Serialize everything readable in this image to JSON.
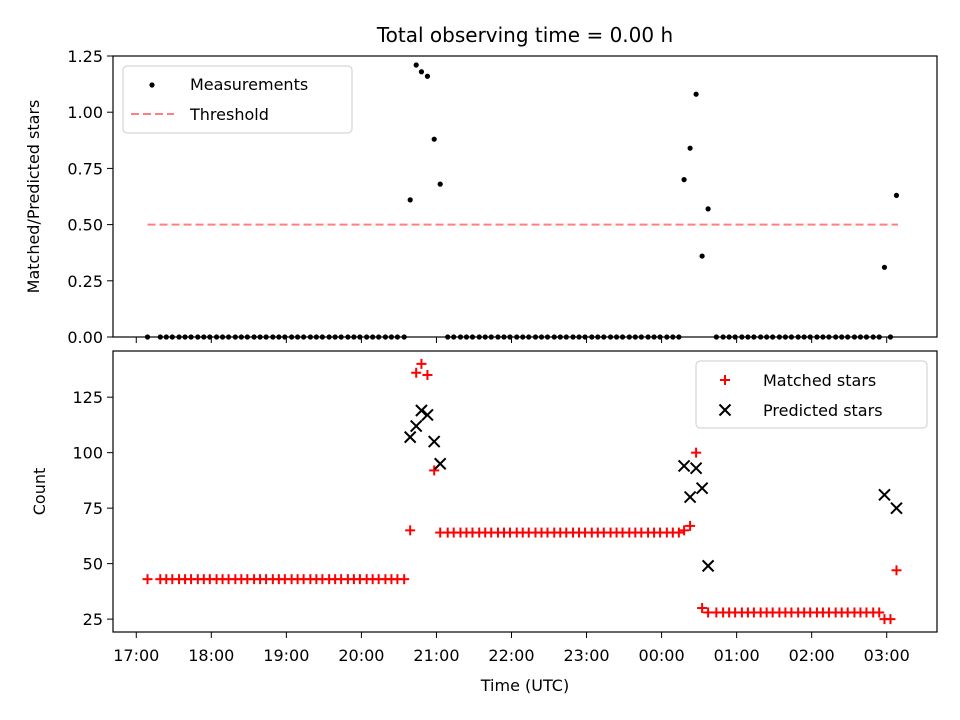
{
  "chart_data": [
    {
      "type": "scatter",
      "title": "Total observing time = 0.00 h",
      "xlabel": "",
      "ylabel": "Matched/Predicted stars",
      "xlim": [
        16.69,
        27.67
      ],
      "ylim": [
        0,
        1.25
      ],
      "yticks": [
        0.0,
        0.25,
        0.5,
        0.75,
        1.0,
        1.25
      ],
      "ytick_labels": [
        "0.00",
        "0.25",
        "0.50",
        "0.75",
        "1.00",
        "1.25"
      ],
      "legend_position": "top-left",
      "series": [
        {
          "name": "Measurements",
          "marker": "dot",
          "color": "#000000",
          "points": [
            [
              17.15,
              0
            ],
            [
              17.32,
              0
            ],
            [
              17.4,
              0
            ],
            [
              17.48,
              0
            ],
            [
              17.57,
              0
            ],
            [
              17.65,
              0
            ],
            [
              17.73,
              0
            ],
            [
              17.82,
              0
            ],
            [
              17.9,
              0
            ],
            [
              17.98,
              0
            ],
            [
              18.07,
              0
            ],
            [
              18.15,
              0
            ],
            [
              18.23,
              0
            ],
            [
              18.32,
              0
            ],
            [
              18.4,
              0
            ],
            [
              18.48,
              0
            ],
            [
              18.57,
              0
            ],
            [
              18.65,
              0
            ],
            [
              18.73,
              0
            ],
            [
              18.82,
              0
            ],
            [
              18.9,
              0
            ],
            [
              18.98,
              0
            ],
            [
              19.07,
              0
            ],
            [
              19.15,
              0
            ],
            [
              19.23,
              0
            ],
            [
              19.32,
              0
            ],
            [
              19.4,
              0
            ],
            [
              19.48,
              0
            ],
            [
              19.57,
              0
            ],
            [
              19.65,
              0
            ],
            [
              19.73,
              0
            ],
            [
              19.82,
              0
            ],
            [
              19.9,
              0
            ],
            [
              19.98,
              0
            ],
            [
              20.07,
              0
            ],
            [
              20.15,
              0
            ],
            [
              20.23,
              0
            ],
            [
              20.32,
              0
            ],
            [
              20.4,
              0
            ],
            [
              20.48,
              0
            ],
            [
              20.57,
              0
            ],
            [
              20.65,
              0.61
            ],
            [
              20.73,
              1.21
            ],
            [
              20.8,
              1.18
            ],
            [
              20.88,
              1.16
            ],
            [
              20.97,
              0.88
            ],
            [
              21.05,
              0.68
            ],
            [
              21.15,
              0
            ],
            [
              21.23,
              0
            ],
            [
              21.32,
              0
            ],
            [
              21.4,
              0
            ],
            [
              21.48,
              0
            ],
            [
              21.57,
              0
            ],
            [
              21.65,
              0
            ],
            [
              21.73,
              0
            ],
            [
              21.82,
              0
            ],
            [
              21.9,
              0
            ],
            [
              21.98,
              0
            ],
            [
              22.07,
              0
            ],
            [
              22.15,
              0
            ],
            [
              22.23,
              0
            ],
            [
              22.32,
              0
            ],
            [
              22.4,
              0
            ],
            [
              22.48,
              0
            ],
            [
              22.57,
              0
            ],
            [
              22.65,
              0
            ],
            [
              22.73,
              0
            ],
            [
              22.82,
              0
            ],
            [
              22.9,
              0
            ],
            [
              22.98,
              0
            ],
            [
              23.07,
              0
            ],
            [
              23.15,
              0
            ],
            [
              23.23,
              0
            ],
            [
              23.32,
              0
            ],
            [
              23.4,
              0
            ],
            [
              23.48,
              0
            ],
            [
              23.57,
              0
            ],
            [
              23.65,
              0
            ],
            [
              23.73,
              0
            ],
            [
              23.82,
              0
            ],
            [
              23.9,
              0
            ],
            [
              23.98,
              0
            ],
            [
              24.07,
              0
            ],
            [
              24.15,
              0
            ],
            [
              24.23,
              0
            ],
            [
              24.3,
              0.7
            ],
            [
              24.38,
              0.84
            ],
            [
              24.46,
              1.08
            ],
            [
              24.54,
              0.36
            ],
            [
              24.62,
              0.57
            ],
            [
              24.73,
              0
            ],
            [
              24.82,
              0
            ],
            [
              24.9,
              0
            ],
            [
              24.98,
              0
            ],
            [
              25.07,
              0
            ],
            [
              25.15,
              0
            ],
            [
              25.23,
              0
            ],
            [
              25.32,
              0
            ],
            [
              25.4,
              0
            ],
            [
              25.48,
              0
            ],
            [
              25.57,
              0
            ],
            [
              25.65,
              0
            ],
            [
              25.73,
              0
            ],
            [
              25.82,
              0
            ],
            [
              25.9,
              0
            ],
            [
              25.98,
              0
            ],
            [
              26.07,
              0
            ],
            [
              26.15,
              0
            ],
            [
              26.23,
              0
            ],
            [
              26.32,
              0
            ],
            [
              26.4,
              0
            ],
            [
              26.48,
              0
            ],
            [
              26.57,
              0
            ],
            [
              26.65,
              0
            ],
            [
              26.73,
              0
            ],
            [
              26.82,
              0
            ],
            [
              26.9,
              0
            ],
            [
              26.97,
              0.31
            ],
            [
              27.05,
              0
            ],
            [
              27.13,
              0.63
            ]
          ]
        },
        {
          "name": "Threshold",
          "style": "dashed",
          "color": "#ff7f7f",
          "points": [
            [
              17.15,
              0.5
            ],
            [
              27.15,
              0.5
            ]
          ]
        }
      ]
    },
    {
      "type": "scatter",
      "title": "",
      "xlabel": "Time (UTC)",
      "ylabel": "Count",
      "xlim": [
        16.69,
        27.67
      ],
      "ylim": [
        19.2,
        145.8
      ],
      "yticks": [
        25,
        50,
        75,
        100,
        125
      ],
      "ytick_labels": [
        "25",
        "50",
        "75",
        "100",
        "125"
      ],
      "xticks": [
        17,
        18,
        19,
        20,
        21,
        22,
        23,
        24,
        25,
        26,
        27
      ],
      "xtick_labels": [
        "17:00",
        "18:00",
        "19:00",
        "20:00",
        "21:00",
        "22:00",
        "23:00",
        "00:00",
        "01:00",
        "02:00",
        "03:00"
      ],
      "legend_position": "top-right",
      "series": [
        {
          "name": "Matched stars",
          "marker": "plus",
          "color": "#ff0000",
          "points": [
            [
              17.15,
              43
            ],
            [
              17.32,
              43
            ],
            [
              17.4,
              43
            ],
            [
              17.48,
              43
            ],
            [
              17.57,
              43
            ],
            [
              17.65,
              43
            ],
            [
              17.73,
              43
            ],
            [
              17.82,
              43
            ],
            [
              17.9,
              43
            ],
            [
              17.98,
              43
            ],
            [
              18.07,
              43
            ],
            [
              18.15,
              43
            ],
            [
              18.23,
              43
            ],
            [
              18.32,
              43
            ],
            [
              18.4,
              43
            ],
            [
              18.48,
              43
            ],
            [
              18.57,
              43
            ],
            [
              18.65,
              43
            ],
            [
              18.73,
              43
            ],
            [
              18.82,
              43
            ],
            [
              18.9,
              43
            ],
            [
              18.98,
              43
            ],
            [
              19.07,
              43
            ],
            [
              19.15,
              43
            ],
            [
              19.23,
              43
            ],
            [
              19.32,
              43
            ],
            [
              19.4,
              43
            ],
            [
              19.48,
              43
            ],
            [
              19.57,
              43
            ],
            [
              19.65,
              43
            ],
            [
              19.73,
              43
            ],
            [
              19.82,
              43
            ],
            [
              19.9,
              43
            ],
            [
              19.98,
              43
            ],
            [
              20.07,
              43
            ],
            [
              20.15,
              43
            ],
            [
              20.23,
              43
            ],
            [
              20.32,
              43
            ],
            [
              20.4,
              43
            ],
            [
              20.48,
              43
            ],
            [
              20.57,
              43
            ],
            [
              20.65,
              65
            ],
            [
              20.73,
              136
            ],
            [
              20.8,
              140
            ],
            [
              20.88,
              135
            ],
            [
              20.97,
              92
            ],
            [
              21.05,
              64
            ],
            [
              21.15,
              64
            ],
            [
              21.23,
              64
            ],
            [
              21.32,
              64
            ],
            [
              21.4,
              64
            ],
            [
              21.48,
              64
            ],
            [
              21.57,
              64
            ],
            [
              21.65,
              64
            ],
            [
              21.73,
              64
            ],
            [
              21.82,
              64
            ],
            [
              21.9,
              64
            ],
            [
              21.98,
              64
            ],
            [
              22.07,
              64
            ],
            [
              22.15,
              64
            ],
            [
              22.23,
              64
            ],
            [
              22.32,
              64
            ],
            [
              22.4,
              64
            ],
            [
              22.48,
              64
            ],
            [
              22.57,
              64
            ],
            [
              22.65,
              64
            ],
            [
              22.73,
              64
            ],
            [
              22.82,
              64
            ],
            [
              22.9,
              64
            ],
            [
              22.98,
              64
            ],
            [
              23.07,
              64
            ],
            [
              23.15,
              64
            ],
            [
              23.23,
              64
            ],
            [
              23.32,
              64
            ],
            [
              23.4,
              64
            ],
            [
              23.48,
              64
            ],
            [
              23.57,
              64
            ],
            [
              23.65,
              64
            ],
            [
              23.73,
              64
            ],
            [
              23.82,
              64
            ],
            [
              23.9,
              64
            ],
            [
              23.98,
              64
            ],
            [
              24.07,
              64
            ],
            [
              24.15,
              64
            ],
            [
              24.23,
              64
            ],
            [
              24.3,
              65
            ],
            [
              24.38,
              67
            ],
            [
              24.46,
              100
            ],
            [
              24.54,
              30
            ],
            [
              24.62,
              28
            ],
            [
              24.73,
              28
            ],
            [
              24.82,
              28
            ],
            [
              24.9,
              28
            ],
            [
              24.98,
              28
            ],
            [
              25.07,
              28
            ],
            [
              25.15,
              28
            ],
            [
              25.23,
              28
            ],
            [
              25.32,
              28
            ],
            [
              25.4,
              28
            ],
            [
              25.48,
              28
            ],
            [
              25.57,
              28
            ],
            [
              25.65,
              28
            ],
            [
              25.73,
              28
            ],
            [
              25.82,
              28
            ],
            [
              25.9,
              28
            ],
            [
              25.98,
              28
            ],
            [
              26.07,
              28
            ],
            [
              26.15,
              28
            ],
            [
              26.23,
              28
            ],
            [
              26.32,
              28
            ],
            [
              26.4,
              28
            ],
            [
              26.48,
              28
            ],
            [
              26.57,
              28
            ],
            [
              26.65,
              28
            ],
            [
              26.73,
              28
            ],
            [
              26.82,
              28
            ],
            [
              26.9,
              28
            ],
            [
              26.97,
              25
            ],
            [
              27.05,
              25
            ],
            [
              27.13,
              47
            ]
          ]
        },
        {
          "name": "Predicted stars",
          "marker": "x",
          "color": "#000000",
          "points": [
            [
              20.65,
              107
            ],
            [
              20.73,
              112
            ],
            [
              20.8,
              119
            ],
            [
              20.88,
              117
            ],
            [
              20.97,
              105
            ],
            [
              21.05,
              95
            ],
            [
              24.3,
              94
            ],
            [
              24.38,
              80
            ],
            [
              24.46,
              93
            ],
            [
              24.54,
              84
            ],
            [
              24.62,
              49
            ],
            [
              26.97,
              81
            ],
            [
              27.13,
              75
            ]
          ]
        }
      ]
    }
  ]
}
